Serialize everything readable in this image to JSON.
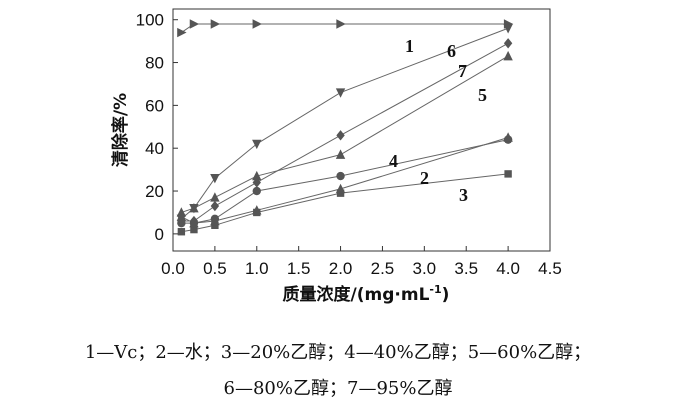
{
  "chart_data": {
    "type": "line",
    "title": "",
    "xlabel": "质量浓度/(mg·mL",
    "xlabel_sup": "-1",
    "xlabel_close": ")",
    "ylabel": "清除率/%",
    "xlim": [
      0,
      4.5
    ],
    "ylim": [
      -8,
      105
    ],
    "x_ticks": [
      "0.0",
      "0.5",
      "1.0",
      "1.5",
      "2.0",
      "2.5",
      "3.0",
      "3.5",
      "4.0",
      "4.5"
    ],
    "y_ticks": [
      "0",
      "20",
      "40",
      "60",
      "80",
      "100"
    ],
    "grid": false,
    "series": [
      {
        "name": "1",
        "marker": "triangle-right",
        "x": [
          0.1,
          0.25,
          0.5,
          1.0,
          2.0,
          4.0
        ],
        "y": [
          94,
          98,
          98,
          98,
          98,
          98
        ]
      },
      {
        "name": "2",
        "marker": "circle",
        "x": [
          0.1,
          0.25,
          0.5,
          1.0,
          2.0,
          4.0
        ],
        "y": [
          5,
          5,
          7,
          20,
          27,
          44
        ]
      },
      {
        "name": "3",
        "marker": "square",
        "x": [
          0.1,
          0.25,
          0.5,
          1.0,
          2.0,
          4.0
        ],
        "y": [
          1,
          2,
          4,
          10,
          19,
          28
        ]
      },
      {
        "name": "4",
        "marker": "triangle-up",
        "x": [
          0.1,
          0.25,
          0.5,
          1.0,
          2.0,
          4.0
        ],
        "y": [
          8,
          5,
          6,
          11,
          21,
          45
        ]
      },
      {
        "name": "5",
        "marker": "triangle-up",
        "x": [
          0.1,
          0.25,
          0.5,
          1.0,
          2.0,
          4.0
        ],
        "y": [
          10,
          12,
          17,
          27,
          37,
          83
        ]
      },
      {
        "name": "6",
        "marker": "triangle-down",
        "x": [
          0.1,
          0.25,
          0.5,
          1.0,
          2.0,
          4.0
        ],
        "y": [
          7,
          12,
          26,
          42,
          66,
          96
        ]
      },
      {
        "name": "7",
        "marker": "diamond",
        "x": [
          0.1,
          0.25,
          0.5,
          1.0,
          2.0,
          4.0
        ],
        "y": [
          6,
          6,
          13,
          24,
          46,
          89
        ]
      }
    ]
  },
  "caption": {
    "line1": "1—Vc；2—水；3—20%乙醇；4—40%乙醇；5—60%乙醇；",
    "line2": "6—80%乙醇；7—95%乙醇"
  }
}
